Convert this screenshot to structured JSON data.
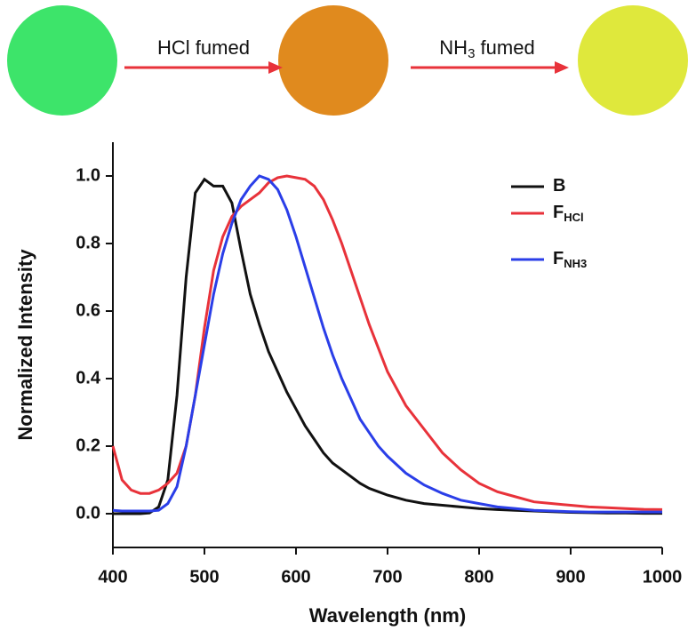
{
  "chart_data": {
    "type": "line",
    "annotations": [
      {
        "text": "HCl fumed"
      },
      {
        "text": "NH",
        "sub": "3",
        "tail": " fumed"
      }
    ],
    "image_colors": [
      "#3de46a",
      "#e08a1e",
      "#dfe83c"
    ],
    "arrow_color": "#e8323a",
    "xlabel": "Wavelength (nm)",
    "ylabel": "Normalized Intensity",
    "xlim": [
      400,
      1000
    ],
    "ylim": [
      -0.1,
      1.1
    ],
    "xticks": [
      400,
      500,
      600,
      700,
      800,
      900,
      1000
    ],
    "yticks": [
      {
        "value": 0,
        "label": "0.0"
      },
      {
        "value": 0.2,
        "label": "0.2"
      },
      {
        "value": 0.4,
        "label": "0.4"
      },
      {
        "value": 0.6,
        "label": "0.6"
      },
      {
        "value": 0.8,
        "label": "0.8"
      },
      {
        "value": 1.0,
        "label": "1.0"
      }
    ],
    "legend": "upper right",
    "x": [
      400,
      410,
      420,
      430,
      440,
      450,
      460,
      470,
      480,
      490,
      500,
      510,
      520,
      530,
      540,
      550,
      560,
      570,
      580,
      590,
      600,
      610,
      620,
      630,
      640,
      650,
      660,
      670,
      680,
      690,
      700,
      720,
      740,
      760,
      780,
      800,
      820,
      840,
      860,
      880,
      900,
      920,
      940,
      960,
      980,
      1000
    ],
    "series": [
      {
        "name": "B",
        "color": "#111111",
        "values": [
          0,
          0,
          0,
          0,
          0.002,
          0.02,
          0.1,
          0.35,
          0.7,
          0.95,
          0.99,
          0.97,
          0.97,
          0.92,
          0.78,
          0.65,
          0.56,
          0.48,
          0.42,
          0.36,
          0.31,
          0.26,
          0.22,
          0.18,
          0.15,
          0.13,
          0.11,
          0.09,
          0.075,
          0.065,
          0.055,
          0.04,
          0.03,
          0.025,
          0.02,
          0.015,
          0.012,
          0.01,
          0.008,
          0.006,
          0.004,
          0.003,
          0.002,
          0.002,
          0.001,
          0.001
        ]
      },
      {
        "name": "F",
        "name_sub": "HCl",
        "color": "#e8323a",
        "values": [
          0.2,
          0.1,
          0.07,
          0.06,
          0.06,
          0.07,
          0.09,
          0.12,
          0.2,
          0.35,
          0.55,
          0.72,
          0.82,
          0.88,
          0.91,
          0.93,
          0.95,
          0.98,
          0.995,
          1.0,
          0.995,
          0.99,
          0.97,
          0.93,
          0.87,
          0.8,
          0.72,
          0.64,
          0.56,
          0.49,
          0.42,
          0.32,
          0.25,
          0.18,
          0.13,
          0.09,
          0.065,
          0.05,
          0.035,
          0.03,
          0.025,
          0.02,
          0.018,
          0.015,
          0.013,
          0.012
        ]
      },
      {
        "name": "F",
        "name_sub": "NH3",
        "color": "#2a3ee8",
        "values": [
          0.01,
          0.008,
          0.008,
          0.008,
          0.008,
          0.01,
          0.03,
          0.08,
          0.2,
          0.35,
          0.5,
          0.65,
          0.77,
          0.86,
          0.93,
          0.97,
          1.0,
          0.99,
          0.96,
          0.9,
          0.82,
          0.73,
          0.64,
          0.55,
          0.47,
          0.4,
          0.34,
          0.28,
          0.24,
          0.2,
          0.17,
          0.12,
          0.085,
          0.06,
          0.04,
          0.03,
          0.02,
          0.015,
          0.01,
          0.008,
          0.006,
          0.005,
          0.005,
          0.005,
          0.005,
          0.005
        ]
      }
    ]
  }
}
